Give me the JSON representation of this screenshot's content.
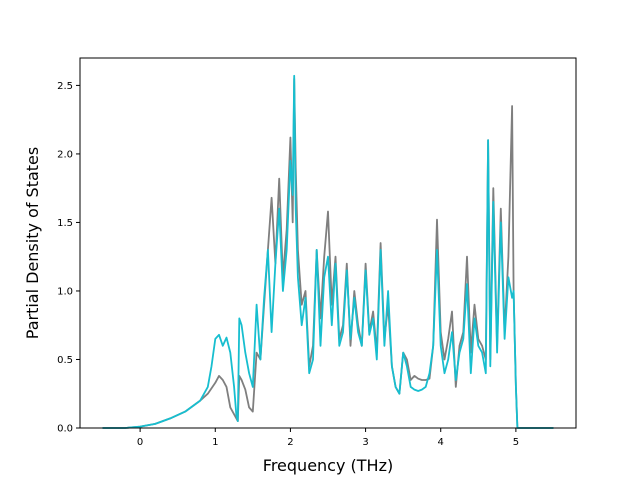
{
  "chart_data": {
    "type": "line",
    "title": "",
    "xlabel": "Frequency (THz)",
    "ylabel": "Partial Density of States",
    "xlim": [
      -0.8,
      5.8
    ],
    "ylim": [
      0.0,
      2.7
    ],
    "xticks": [
      0,
      1,
      2,
      3,
      4,
      5
    ],
    "yticks": [
      0.0,
      0.5,
      1.0,
      1.5,
      2.0,
      2.5
    ],
    "xtick_labels": [
      "0",
      "1",
      "2",
      "3",
      "4",
      "5"
    ],
    "ytick_labels": [
      "0.0",
      "0.5",
      "1.0",
      "1.5",
      "2.0",
      "2.5"
    ],
    "grid": false,
    "legend": "none",
    "series": [
      {
        "color": "#7f7f7f",
        "x": [
          -0.5,
          -0.2,
          0.0,
          0.2,
          0.4,
          0.6,
          0.8,
          0.9,
          1.0,
          1.05,
          1.1,
          1.15,
          1.2,
          1.25,
          1.3,
          1.32,
          1.35,
          1.4,
          1.45,
          1.5,
          1.55,
          1.6,
          1.65,
          1.7,
          1.75,
          1.8,
          1.85,
          1.9,
          1.95,
          2.0,
          2.03,
          2.05,
          2.07,
          2.1,
          2.15,
          2.2,
          2.25,
          2.3,
          2.35,
          2.4,
          2.45,
          2.5,
          2.55,
          2.6,
          2.65,
          2.7,
          2.75,
          2.8,
          2.85,
          2.9,
          2.95,
          3.0,
          3.05,
          3.1,
          3.15,
          3.2,
          3.25,
          3.3,
          3.35,
          3.4,
          3.45,
          3.5,
          3.55,
          3.6,
          3.65,
          3.7,
          3.75,
          3.8,
          3.85,
          3.9,
          3.95,
          4.0,
          4.05,
          4.1,
          4.15,
          4.2,
          4.25,
          4.3,
          4.35,
          4.4,
          4.45,
          4.5,
          4.55,
          4.6,
          4.63,
          4.66,
          4.7,
          4.75,
          4.8,
          4.85,
          4.9,
          4.95,
          4.97,
          5.0,
          5.02,
          5.1,
          5.5
        ],
        "y": [
          0.0,
          0.0,
          0.01,
          0.03,
          0.07,
          0.12,
          0.2,
          0.25,
          0.33,
          0.38,
          0.35,
          0.3,
          0.15,
          0.1,
          0.05,
          0.38,
          0.35,
          0.28,
          0.15,
          0.12,
          0.55,
          0.5,
          0.9,
          1.3,
          1.68,
          1.2,
          1.82,
          1.1,
          1.45,
          2.12,
          1.5,
          2.55,
          1.9,
          1.3,
          0.9,
          1.0,
          0.45,
          0.6,
          1.3,
          0.8,
          1.25,
          1.58,
          0.9,
          1.25,
          0.65,
          0.75,
          1.2,
          0.6,
          1.0,
          0.75,
          0.6,
          1.2,
          0.7,
          0.85,
          0.55,
          1.35,
          0.65,
          0.9,
          0.45,
          0.3,
          0.25,
          0.55,
          0.5,
          0.35,
          0.38,
          0.36,
          0.35,
          0.35,
          0.36,
          0.6,
          1.52,
          0.7,
          0.5,
          0.65,
          0.85,
          0.3,
          0.6,
          0.7,
          1.25,
          0.55,
          0.9,
          0.65,
          0.6,
          0.5,
          2.1,
          0.5,
          1.75,
          0.6,
          1.6,
          0.7,
          1.25,
          2.35,
          1.0,
          0.3,
          0.0,
          0.0,
          0.0
        ]
      },
      {
        "color": "#17becf",
        "x": [
          -0.5,
          -0.2,
          0.0,
          0.2,
          0.4,
          0.6,
          0.8,
          0.9,
          0.95,
          1.0,
          1.05,
          1.1,
          1.15,
          1.2,
          1.25,
          1.28,
          1.3,
          1.32,
          1.35,
          1.4,
          1.45,
          1.5,
          1.55,
          1.6,
          1.65,
          1.7,
          1.75,
          1.8,
          1.85,
          1.9,
          1.95,
          2.0,
          2.03,
          2.05,
          2.07,
          2.1,
          2.15,
          2.2,
          2.25,
          2.3,
          2.35,
          2.4,
          2.45,
          2.5,
          2.55,
          2.6,
          2.65,
          2.7,
          2.75,
          2.8,
          2.85,
          2.9,
          2.95,
          3.0,
          3.05,
          3.1,
          3.15,
          3.2,
          3.25,
          3.3,
          3.35,
          3.4,
          3.45,
          3.5,
          3.55,
          3.6,
          3.65,
          3.7,
          3.75,
          3.8,
          3.85,
          3.9,
          3.95,
          4.0,
          4.05,
          4.1,
          4.15,
          4.2,
          4.25,
          4.3,
          4.35,
          4.4,
          4.45,
          4.5,
          4.55,
          4.6,
          4.63,
          4.66,
          4.7,
          4.75,
          4.8,
          4.85,
          4.9,
          4.95,
          4.97,
          5.0,
          5.02,
          5.1,
          5.5
        ],
        "y": [
          0.0,
          0.0,
          0.01,
          0.03,
          0.07,
          0.12,
          0.2,
          0.3,
          0.45,
          0.65,
          0.68,
          0.6,
          0.66,
          0.55,
          0.3,
          0.1,
          0.05,
          0.8,
          0.75,
          0.55,
          0.4,
          0.3,
          0.9,
          0.5,
          0.95,
          1.3,
          0.7,
          1.2,
          1.6,
          1.0,
          1.3,
          1.95,
          1.7,
          2.57,
          1.6,
          1.1,
          0.75,
          0.95,
          0.4,
          0.5,
          1.3,
          0.6,
          1.1,
          1.25,
          0.75,
          1.2,
          0.6,
          0.7,
          1.15,
          0.65,
          0.95,
          0.7,
          0.6,
          1.15,
          0.68,
          0.8,
          0.5,
          1.3,
          0.6,
          1.0,
          0.45,
          0.3,
          0.25,
          0.55,
          0.45,
          0.3,
          0.28,
          0.27,
          0.28,
          0.3,
          0.4,
          0.6,
          1.3,
          0.6,
          0.4,
          0.5,
          0.7,
          0.35,
          0.55,
          0.65,
          1.05,
          0.4,
          0.8,
          0.6,
          0.55,
          0.4,
          2.1,
          0.45,
          1.65,
          0.55,
          1.5,
          0.65,
          1.1,
          0.95,
          1.0,
          0.3,
          0.0,
          0.0,
          0.0
        ]
      }
    ]
  }
}
